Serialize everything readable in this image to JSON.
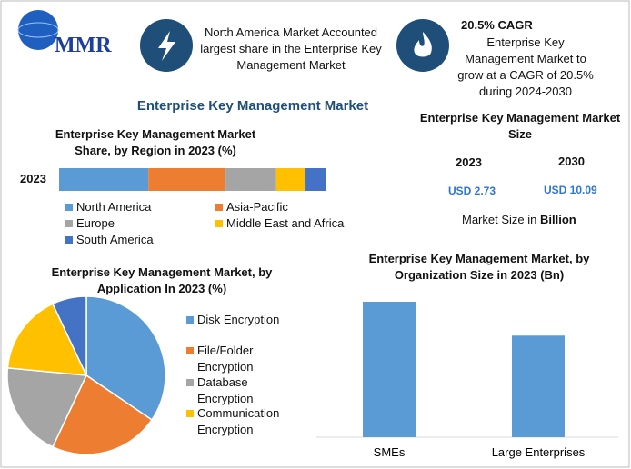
{
  "logo": "MMR",
  "highlights": [
    {
      "text": "North America Market Accounted largest share in the Enterprise Key Management Market"
    },
    {
      "title": "20.5% CAGR",
      "text": "Enterprise Key Management Market to grow at a CAGR of 20.5% during 2024-2030"
    }
  ],
  "title": "Enterprise Key Management Market",
  "market_size": {
    "title": "Enterprise Key Management Market Size",
    "years": [
      "2023",
      "2030"
    ],
    "amounts": [
      "USD 2.73",
      "USD 10.09"
    ],
    "note": "Market Size in",
    "note_unit": "Billion"
  },
  "chart_data": [
    {
      "type": "stacked_bar",
      "title": "Enterprise Key Management Market Share, by Region in 2023 (%)",
      "categories": [
        "2023"
      ],
      "series": [
        {
          "name": "North America",
          "color": "#5b9bd5",
          "values": [
            33.5
          ]
        },
        {
          "name": "Asia-Pacific",
          "color": "#ed7d31",
          "values": [
            29
          ]
        },
        {
          "name": "Europe",
          "color": "#a5a5a5",
          "values": [
            19
          ]
        },
        {
          "name": "Middle East and Africa",
          "color": "#ffc000",
          "values": [
            11
          ]
        },
        {
          "name": "South America",
          "color": "#4472c4",
          "values": [
            7.5
          ]
        }
      ]
    },
    {
      "type": "pie",
      "title": "Enterprise Key Management Market, by Application In 2023 (%)",
      "categories": [
        "Disk Encryption",
        "File/Folder Encryption",
        "Database Encryption",
        "Communication Encryption",
        null
      ],
      "values": [
        34.5,
        22.5,
        19.5,
        16.5,
        7
      ],
      "colors": [
        "#5b9bd5",
        "#ed7d31",
        "#a5a5a5",
        "#ffc000",
        "#4472c4"
      ]
    },
    {
      "type": "bar",
      "title": "Enterprise Key Management Market, by Organization Size in 2023 (Bn)",
      "categories": [
        "SMEs",
        "Large Enterprises"
      ],
      "values": [
        1.56,
        1.17
      ],
      "color": "#5b9bd5"
    }
  ]
}
